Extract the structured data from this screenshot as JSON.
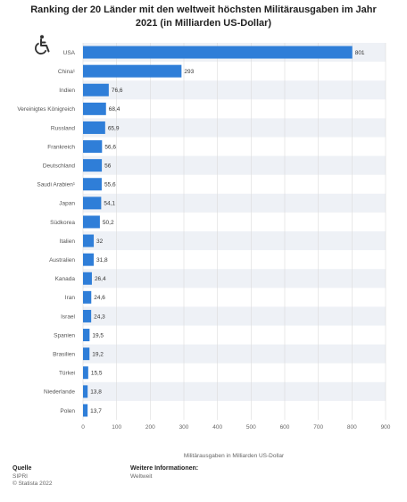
{
  "title": "Ranking der 20 Länder mit den weltweit höchsten Militärausgaben im Jahr 2021 (in Milliarden US-Dollar)",
  "accessibility_icon": "wheelchair-icon",
  "colors": {
    "bar": "#2f7ed8",
    "stripe": "#eef1f6",
    "grid": "#dcdcdc",
    "axis_text": "#666666"
  },
  "chart_data": {
    "type": "bar",
    "orientation": "horizontal",
    "categories": [
      "USA",
      "China¹",
      "Indien",
      "Vereinigtes Königreich",
      "Russland",
      "Frankreich",
      "Deutschland",
      "Saudi Arabien¹",
      "Japan",
      "Südkorea",
      "Italien",
      "Australien",
      "Kanada",
      "Iran",
      "Israel",
      "Spanien",
      "Brasilien",
      "Türkei",
      "Niederlande",
      "Polen"
    ],
    "values": [
      801,
      293,
      76.6,
      68.4,
      65.9,
      56.6,
      56,
      55.6,
      54.1,
      50.2,
      32,
      31.8,
      26.4,
      24.6,
      24.3,
      19.5,
      19.2,
      15.5,
      13.8,
      13.7
    ],
    "value_labels": [
      "801",
      "293",
      "76,6",
      "68,4",
      "65,9",
      "56,6",
      "56",
      "55,6",
      "54,1",
      "50,2",
      "32",
      "31,8",
      "26,4",
      "24,6",
      "24,3",
      "19,5",
      "19,2",
      "15,5",
      "13,8",
      "13,7"
    ],
    "xlim": [
      0,
      900
    ],
    "xticks": [
      0,
      100,
      200,
      300,
      400,
      500,
      600,
      700,
      800,
      900
    ],
    "xlabel": "Militärausgaben in Milliarden US-Dollar",
    "ylabel": "",
    "grid": true,
    "legend": "none"
  },
  "footer": {
    "source_label": "Quelle",
    "source_lines": [
      "SIPRI",
      "© Statista 2022"
    ],
    "info_label": "Weitere Informationen:",
    "info_lines": [
      "Weltweit"
    ]
  }
}
